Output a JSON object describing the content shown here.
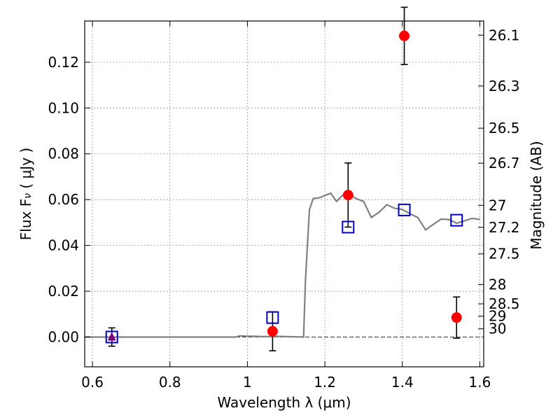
{
  "chart_data": {
    "type": "scatter",
    "xlabel": "Wavelength  λ (μm)",
    "ylabel": "Flux  F",
    "ylabel_sub": "ν",
    "ylabel_unit": "  ( μJy )",
    "y2label": "Magnitude (AB)",
    "xlim": [
      0.58,
      1.61
    ],
    "ylim": [
      -0.013,
      0.138
    ],
    "grid": true,
    "x_ticks": [
      0.6,
      0.8,
      1.0,
      1.2,
      1.4,
      1.6
    ],
    "x_tick_labels": [
      "0.6",
      "0.8",
      "1",
      "1.2",
      "1.4",
      "1.6"
    ],
    "y_ticks": [
      0.0,
      0.02,
      0.04,
      0.06,
      0.08,
      0.1,
      0.12
    ],
    "y_tick_labels": [
      "0.00",
      "0.02",
      "0.04",
      "0.06",
      "0.08",
      "0.10",
      "0.12"
    ],
    "y2_ticks": [
      {
        "label": "26.1",
        "flux": 0.1318
      },
      {
        "label": "26.3",
        "flux": 0.1096
      },
      {
        "label": "26.5",
        "flux": 0.0912
      },
      {
        "label": "26.7",
        "flux": 0.0759
      },
      {
        "label": "27",
        "flux": 0.0575
      },
      {
        "label": "27.2",
        "flux": 0.0479
      },
      {
        "label": "27.5",
        "flux": 0.0363
      },
      {
        "label": "28",
        "flux": 0.0229
      },
      {
        "label": "28.5",
        "flux": 0.0145
      },
      {
        "label": "29",
        "flux": 0.0091
      },
      {
        "label": "30",
        "flux": 0.0036
      }
    ],
    "model_spectrum": {
      "color": "#808080",
      "x": [
        0.58,
        0.97,
        0.98,
        1.0,
        1.02,
        1.04,
        1.06,
        1.08,
        1.1,
        1.12,
        1.145,
        1.15,
        1.16,
        1.17,
        1.185,
        1.2,
        1.215,
        1.23,
        1.245,
        1.26,
        1.28,
        1.3,
        1.32,
        1.34,
        1.36,
        1.38,
        1.4,
        1.42,
        1.44,
        1.46,
        1.48,
        1.5,
        1.52,
        1.54,
        1.56,
        1.58,
        1.6
      ],
      "y": [
        0.0,
        0.0,
        0.0005,
        0.0004,
        0.0003,
        0.0002,
        0.0002,
        0.0003,
        0.0002,
        0.0001,
        0.0,
        0.025,
        0.0555,
        0.0605,
        0.0608,
        0.0618,
        0.0628,
        0.0592,
        0.0618,
        0.0625,
        0.0605,
        0.0592,
        0.0522,
        0.0545,
        0.0578,
        0.0562,
        0.0557,
        0.0538,
        0.0522,
        0.0468,
        0.0492,
        0.0515,
        0.0513,
        0.0497,
        0.0507,
        0.0518,
        0.0514
      ]
    },
    "observed": {
      "color": "#ff0000",
      "points": [
        {
          "x": 1.065,
          "y": 0.0025,
          "yerr": 0.0085
        },
        {
          "x": 1.26,
          "y": 0.062,
          "yerr": 0.014
        },
        {
          "x": 1.405,
          "y": 0.1315,
          "yerr": 0.0125
        },
        {
          "x": 1.54,
          "y": 0.0085,
          "yerr": 0.009
        }
      ]
    },
    "upper_limit": {
      "color": "#800080",
      "points": [
        {
          "x": 0.65,
          "y": 0.0,
          "yerr": 0.004
        }
      ]
    },
    "model_photometry": {
      "color": "#0000cc",
      "points": [
        {
          "x": 0.65,
          "y": 0.0
        },
        {
          "x": 1.065,
          "y": 0.0085
        },
        {
          "x": 1.26,
          "y": 0.048
        },
        {
          "x": 1.405,
          "y": 0.0555
        },
        {
          "x": 1.54,
          "y": 0.051
        }
      ]
    }
  }
}
